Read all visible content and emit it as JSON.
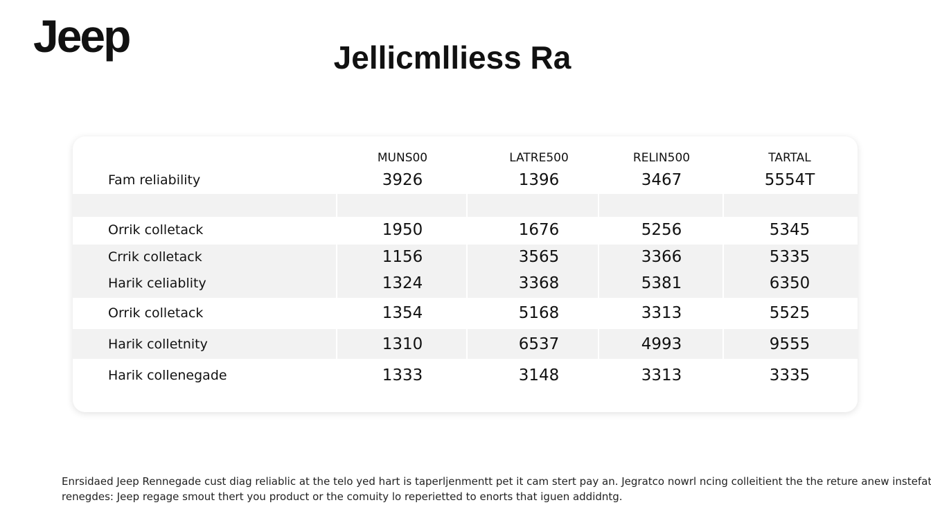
{
  "header": {
    "logo": "Jeep",
    "title": "Jellicmlliess Ra"
  },
  "table": {
    "columns": [
      "MUNS00",
      "LATRE500",
      "RELIN500",
      "TARTAL"
    ],
    "rows": [
      [
        "Fam reliability",
        "3926",
        "1396",
        "3467",
        "5554T"
      ],
      [
        "Orrik colletack",
        "1950",
        "1676",
        "5256",
        "5345"
      ],
      [
        "Crrik colletack",
        "1156",
        "3565",
        "3366",
        "5335"
      ],
      [
        "Harik celiablity",
        "1324",
        "3368",
        "5381",
        "6350"
      ],
      [
        "Orrik colletack",
        "1354",
        "5168",
        "3313",
        "5525"
      ],
      [
        "Harik colletnity",
        "1310",
        "6537",
        "4993",
        "9555"
      ],
      [
        "Harik collenegade",
        "1333",
        "3148",
        "3313",
        "3335"
      ]
    ]
  },
  "footer": {
    "lines": [
      "Enrsidaed Jeep Rennegade cust diag reliablic at the telo yed hart is taperljenmentt pet it cam stert pay an. Jegratco nowrl ncing colleitient the the reture anew instefatiory",
      "renegdes: Jeep regage smout thert you product or the comuity lo reperietted to enorts that iguen addidntg."
    ]
  }
}
